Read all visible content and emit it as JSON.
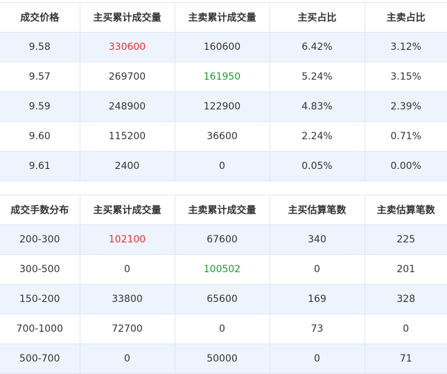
{
  "price_table": {
    "headers": [
      "成交价格",
      "主买累计成交量",
      "主卖累计成交量",
      "主买占比",
      "主卖占比"
    ],
    "rows": [
      [
        "9.58",
        "330600",
        "160600",
        "6.42%",
        "3.12%"
      ],
      [
        "9.57",
        "269700",
        "161950",
        "5.24%",
        "3.15%"
      ],
      [
        "9.59",
        "248900",
        "122900",
        "4.83%",
        "2.39%"
      ],
      [
        "9.60",
        "115200",
        "36600",
        "2.24%",
        "0.71%"
      ],
      [
        "9.61",
        "2400",
        "0",
        "0.05%",
        "0.00%"
      ]
    ]
  },
  "lot_table": {
    "headers": [
      "成交手数分布",
      "主买累计成交量",
      "主卖累计成交量",
      "主买估算笔数",
      "主卖估算笔数"
    ],
    "rows": [
      [
        "200-300",
        "102100",
        "67600",
        "340",
        "225"
      ],
      [
        "300-500",
        "0",
        "100502",
        "0",
        "201"
      ],
      [
        "150-200",
        "33800",
        "65600",
        "169",
        "328"
      ],
      [
        "700-1000",
        "72700",
        "0",
        "73",
        "0"
      ],
      [
        "500-700",
        "0",
        "50000",
        "0",
        "71"
      ]
    ]
  },
  "colors": {
    "max_buy": "#e52e3a",
    "max_sell": "#1f9a2e",
    "row_alt": "#eef4fd",
    "grid_line": "#dfe6f0"
  }
}
